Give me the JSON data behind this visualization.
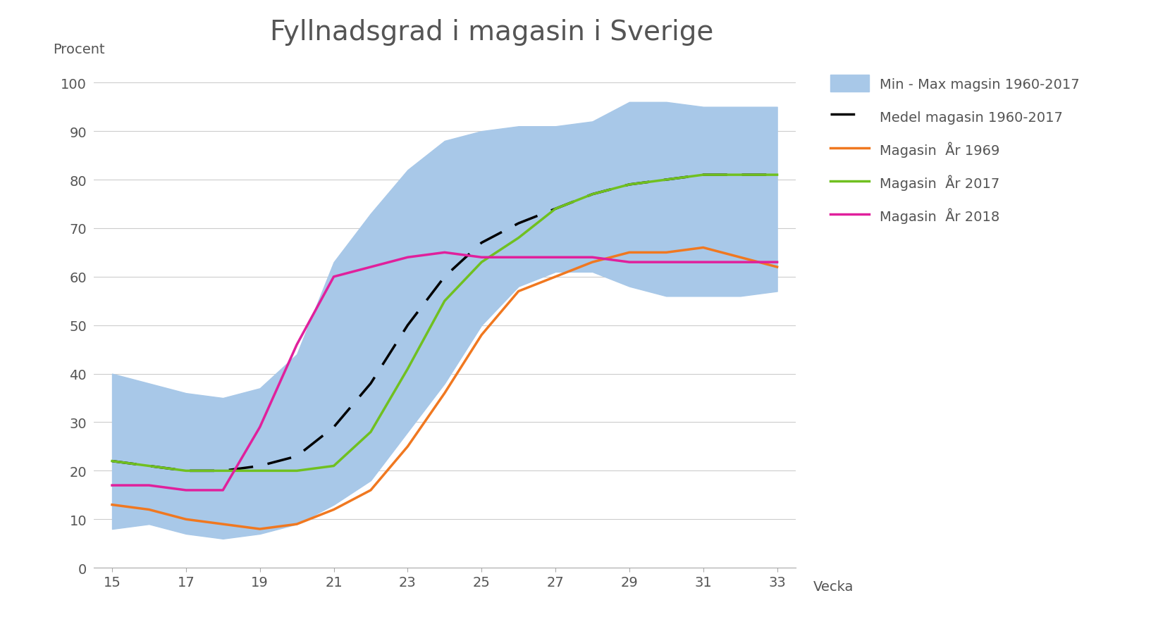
{
  "title": "Fyllnadsgrad i magasin i Sverige",
  "xlabel": "Vecka",
  "ylabel": "Procent",
  "weeks": [
    15,
    16,
    17,
    18,
    19,
    20,
    21,
    22,
    23,
    24,
    25,
    26,
    27,
    28,
    29,
    30,
    31,
    32,
    33
  ],
  "band_min": [
    8,
    9,
    7,
    6,
    7,
    9,
    13,
    18,
    28,
    38,
    50,
    58,
    61,
    61,
    58,
    56,
    56,
    56,
    57
  ],
  "band_max": [
    40,
    38,
    36,
    35,
    37,
    44,
    63,
    73,
    82,
    88,
    90,
    91,
    91,
    92,
    96,
    96,
    95,
    95,
    95
  ],
  "medel": [
    22,
    21,
    20,
    20,
    21,
    23,
    29,
    38,
    50,
    60,
    67,
    71,
    74,
    77,
    79,
    80,
    81,
    81,
    81
  ],
  "yr1969": [
    13,
    12,
    10,
    9,
    8,
    9,
    12,
    16,
    25,
    36,
    48,
    57,
    60,
    63,
    65,
    65,
    66,
    64,
    62
  ],
  "yr2017": [
    22,
    21,
    20,
    20,
    20,
    20,
    21,
    28,
    41,
    55,
    63,
    68,
    74,
    77,
    79,
    80,
    81,
    81,
    81
  ],
  "yr2018": [
    17,
    17,
    16,
    16,
    29,
    46,
    60,
    62,
    64,
    65,
    64,
    64,
    64,
    64,
    63,
    63,
    63,
    63,
    63
  ],
  "band_color": "#a8c8e8",
  "medel_color": "#000000",
  "yr1969_color": "#f07820",
  "yr2017_color": "#70c020",
  "yr2018_color": "#e0209c",
  "legend_band": "Min - Max magsin 1960-2017",
  "legend_medel": "Medel magasin 1960-2017",
  "legend_1969": "Magasin  År 1969",
  "legend_2017": "Magasin  År 2017",
  "legend_2018": "Magasin  År 2018",
  "ylim": [
    0,
    103
  ],
  "yticks": [
    0,
    10,
    20,
    30,
    40,
    50,
    60,
    70,
    80,
    90,
    100
  ],
  "xticks": [
    15,
    17,
    19,
    21,
    23,
    25,
    27,
    29,
    31,
    33
  ],
  "title_fontsize": 28,
  "label_fontsize": 14,
  "tick_fontsize": 14,
  "legend_fontsize": 14
}
